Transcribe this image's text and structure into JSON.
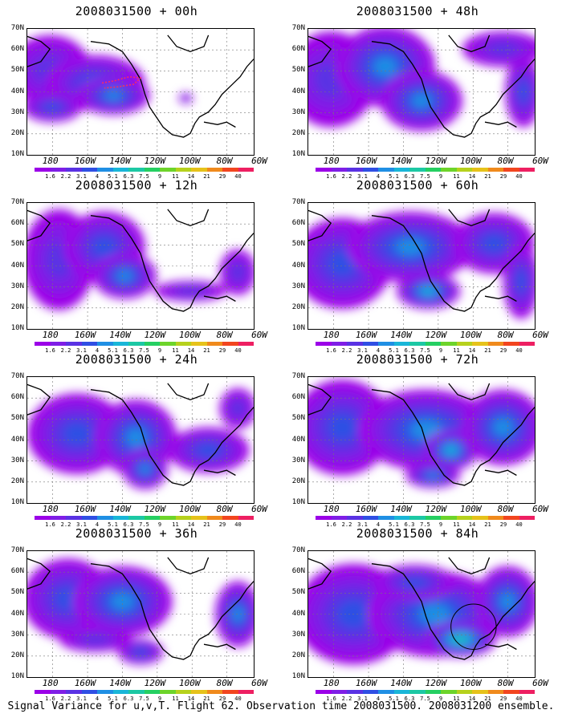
{
  "panels": [
    {
      "title": "2008031500 + 00h",
      "blobs": [
        [
          0.1,
          0.33,
          0.18,
          0.28,
          1.0
        ],
        [
          0.3,
          0.43,
          0.22,
          0.22,
          1.4
        ],
        [
          0.38,
          0.53,
          0.16,
          0.15,
          1.8
        ],
        [
          0.11,
          0.62,
          0.13,
          0.12,
          1.2
        ],
        [
          0.7,
          0.55,
          0.03,
          0.04,
          0.8
        ]
      ]
    },
    {
      "title": "2008031500 + 48h",
      "blobs": [
        [
          0.1,
          0.4,
          0.2,
          0.38,
          1.1
        ],
        [
          0.34,
          0.3,
          0.22,
          0.32,
          1.6
        ],
        [
          0.5,
          0.57,
          0.18,
          0.24,
          1.9
        ],
        [
          0.86,
          0.16,
          0.18,
          0.14,
          1.0
        ],
        [
          0.95,
          0.5,
          0.08,
          0.28,
          1.4
        ]
      ]
    },
    {
      "title": "2008031500 + 12h",
      "blobs": [
        [
          0.14,
          0.45,
          0.16,
          0.4,
          1.0
        ],
        [
          0.34,
          0.35,
          0.18,
          0.28,
          1.5
        ],
        [
          0.43,
          0.58,
          0.14,
          0.18,
          1.6
        ],
        [
          0.72,
          0.7,
          0.16,
          0.08,
          0.9
        ],
        [
          0.93,
          0.55,
          0.08,
          0.18,
          0.9
        ]
      ]
    },
    {
      "title": "2008031500 + 60h",
      "blobs": [
        [
          0.15,
          0.48,
          0.22,
          0.36,
          1.2
        ],
        [
          0.45,
          0.35,
          0.28,
          0.28,
          1.8
        ],
        [
          0.53,
          0.7,
          0.14,
          0.14,
          2.2
        ],
        [
          0.82,
          0.32,
          0.18,
          0.24,
          1.4
        ],
        [
          0.94,
          0.62,
          0.08,
          0.3,
          1.4
        ]
      ]
    },
    {
      "title": "2008031500 + 24h",
      "blobs": [
        [
          0.22,
          0.45,
          0.22,
          0.32,
          1.4
        ],
        [
          0.48,
          0.48,
          0.18,
          0.3,
          1.8
        ],
        [
          0.52,
          0.73,
          0.1,
          0.16,
          1.6
        ],
        [
          0.8,
          0.58,
          0.18,
          0.18,
          1.2
        ],
        [
          0.93,
          0.25,
          0.08,
          0.16,
          1.0
        ]
      ]
    },
    {
      "title": "2008031500 + 72h",
      "blobs": [
        [
          0.15,
          0.4,
          0.22,
          0.38,
          1.4
        ],
        [
          0.52,
          0.42,
          0.3,
          0.32,
          2.0
        ],
        [
          0.63,
          0.58,
          0.12,
          0.16,
          2.4
        ],
        [
          0.86,
          0.4,
          0.18,
          0.3,
          1.8
        ],
        [
          0.55,
          0.78,
          0.12,
          0.1,
          1.6
        ]
      ]
    },
    {
      "title": "2008031500 + 36h",
      "blobs": [
        [
          0.18,
          0.38,
          0.2,
          0.32,
          1.2
        ],
        [
          0.42,
          0.4,
          0.22,
          0.28,
          1.7
        ],
        [
          0.5,
          0.8,
          0.1,
          0.1,
          1.5
        ],
        [
          0.93,
          0.5,
          0.1,
          0.26,
          1.6
        ],
        [
          0.3,
          0.7,
          0.16,
          0.1,
          1.0
        ]
      ]
    },
    {
      "title": "2008031500 + 84h",
      "blobs": [
        [
          0.2,
          0.5,
          0.26,
          0.4,
          1.4
        ],
        [
          0.56,
          0.5,
          0.3,
          0.34,
          1.9
        ],
        [
          0.67,
          0.7,
          0.16,
          0.14,
          2.6
        ],
        [
          0.88,
          0.4,
          0.14,
          0.28,
          1.8
        ],
        [
          0.47,
          0.25,
          0.18,
          0.14,
          1.3
        ]
      ]
    }
  ],
  "y_ticks": [
    "70N",
    "60N",
    "50N",
    "40N",
    "30N",
    "20N",
    "10N"
  ],
  "x_ticks": [
    "180",
    "160W",
    "140W",
    "120W",
    "100W",
    "80W",
    "60W"
  ],
  "colorbar": {
    "labels": [
      "1.6",
      "2.2",
      "3.1",
      "4",
      "5.1",
      "6.3",
      "7.5",
      "9",
      "11",
      "14",
      "21",
      "29",
      "40"
    ],
    "colors": [
      "#9b00e8",
      "#7f1ee6",
      "#5a32e4",
      "#2f4fe4",
      "#1f8fe4",
      "#19b6d8",
      "#1cc8a4",
      "#25cf62",
      "#6dd42a",
      "#b6d11c",
      "#e6c21a",
      "#f08a1c",
      "#f2451f",
      "#ee1f62"
    ]
  },
  "caption": "Signal Variance for u,v,T. Flight 62. Observation time 2008031500. 2008031200 ensemble."
}
